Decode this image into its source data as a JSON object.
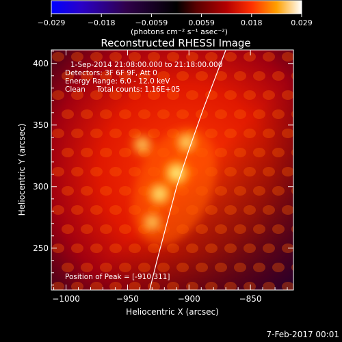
{
  "colorbar": {
    "tick_labels": [
      "−0.029",
      "−0.018",
      "−0.0059",
      "0.0059",
      "0.018",
      "0.029"
    ],
    "unit_label": "(photons cm⁻² s⁻¹ asec⁻²)",
    "colors": [
      "#0000ff",
      "#40008a",
      "#000000",
      "#5a0000",
      "#b40000",
      "#ff2000",
      "#ff9a00",
      "#ffff80",
      "#ffffff"
    ]
  },
  "plot": {
    "title": "Reconstructed RHESSI Image",
    "info_lines": [
      "1-Sep-2014 21:08:00.000 to 21:18:00.000",
      "Detectors: 3F 6F 9F, Att 0",
      "Energy Range: 6.0 - 12.0 keV",
      "Clean     Total counts: 1.16E+05"
    ],
    "peak_label": "Position of Peak = [-910,311]",
    "x_axis": {
      "label": "Heliocentric X (arcsec)",
      "range": [
        -1012,
        -815
      ],
      "ticks": [
        -1000,
        -950,
        -900,
        -850
      ],
      "tick_labels": [
        "−1000",
        "−950",
        "−900",
        "−850"
      ]
    },
    "y_axis": {
      "label": "Heliocentric Y (arcsec)",
      "range": [
        216,
        411
      ],
      "ticks": [
        250,
        300,
        350,
        400
      ],
      "tick_labels": [
        "250",
        "300",
        "350",
        "400"
      ]
    },
    "limb_points_arcsec": [
      [
        -870,
        411
      ],
      [
        -888,
        364
      ],
      [
        -900,
        330
      ],
      [
        -910,
        300
      ],
      [
        -918,
        270
      ],
      [
        -926,
        240
      ],
      [
        -932,
        216
      ]
    ],
    "sources_arcsec": [
      {
        "x": -910,
        "y": 311,
        "level": 1.0
      },
      {
        "x": -924,
        "y": 294,
        "level": 0.85
      },
      {
        "x": -902,
        "y": 336,
        "level": 0.7
      },
      {
        "x": -938,
        "y": 334,
        "level": 0.6
      },
      {
        "x": -930,
        "y": 271,
        "level": 0.55
      }
    ]
  },
  "footer": {
    "date": "7-Feb-2017 00:01"
  }
}
